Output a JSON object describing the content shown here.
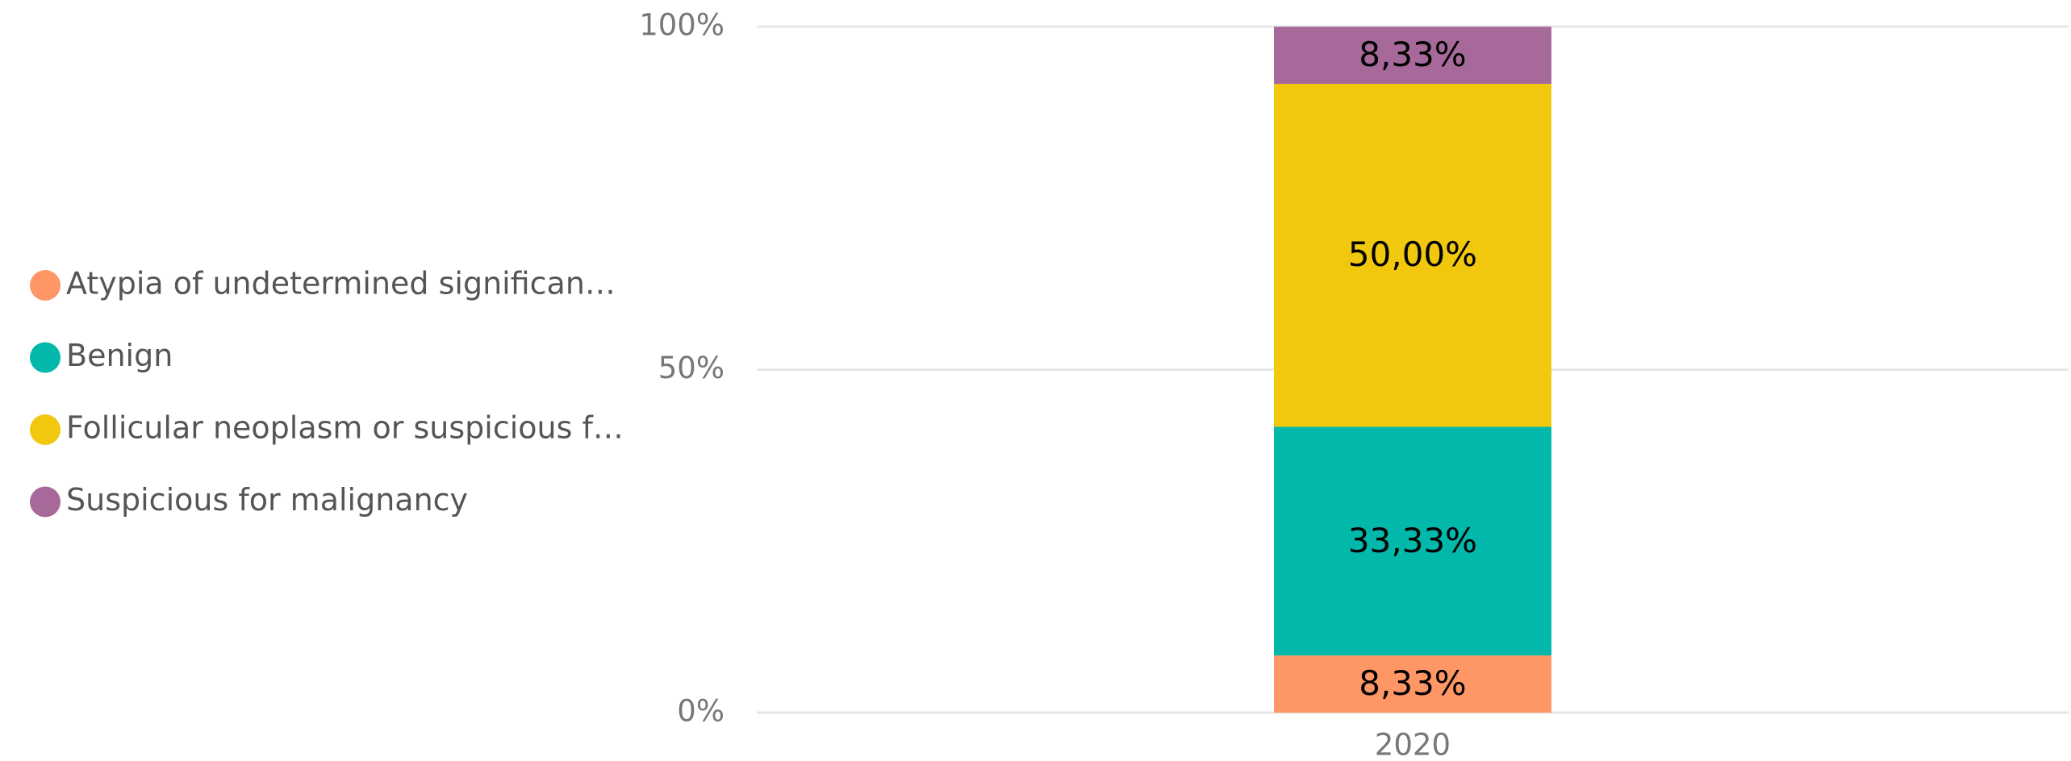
{
  "chart_data": {
    "type": "stacked_bar",
    "categories": [
      "2020"
    ],
    "series": [
      {
        "name": "Atypia of undetermined significan…",
        "color": "#FE9666",
        "values": [
          8.33
        ],
        "value_labels": [
          "8,33%"
        ]
      },
      {
        "name": "Benign",
        "color": "#01B8AA",
        "values": [
          33.33
        ],
        "value_labels": [
          "33,33%"
        ]
      },
      {
        "name": "Follicular neoplasm or suspicious f…",
        "color": "#F2C80F",
        "values": [
          50
        ],
        "value_labels": [
          "50,00%"
        ]
      },
      {
        "name": "Suspicious for malignancy",
        "color": "#A66999",
        "values": [
          8.33
        ],
        "value_labels": [
          "8,33%"
        ]
      }
    ],
    "ylim": [
      0,
      100
    ],
    "yticks": [
      {
        "value": 0,
        "label": "0%"
      },
      {
        "value": 50,
        "label": "50%"
      },
      {
        "value": 100,
        "label": "100%"
      }
    ],
    "grid": true,
    "legend": "left"
  }
}
